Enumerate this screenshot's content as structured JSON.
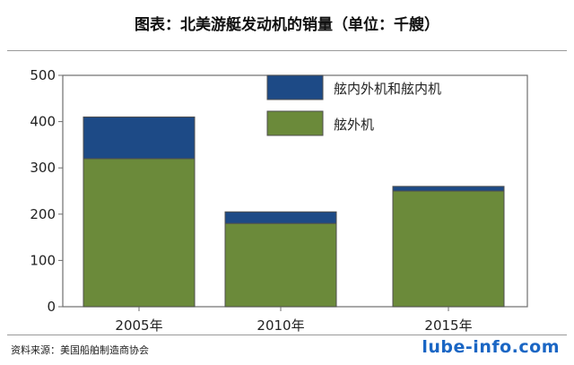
{
  "title": "图表：北美游艇发动机的销量（单位：千艘）",
  "source": "资料来源：美国船舶制造商协会",
  "watermark": "lube-info.com",
  "chart_data": {
    "type": "bar",
    "stacked": true,
    "categories": [
      "2005年",
      "2010年",
      "2015年"
    ],
    "series": [
      {
        "name": "舷外机",
        "values": [
          320,
          180,
          250
        ],
        "color": "#6b8a3a"
      },
      {
        "name": "舷内外机和舷内机",
        "values": [
          90,
          25,
          10
        ],
        "color": "#1d4a86"
      }
    ],
    "ylim": [
      0,
      500
    ],
    "yticks": [
      0,
      100,
      200,
      300,
      400,
      500
    ],
    "legend_position": "top-right",
    "grid": false
  }
}
